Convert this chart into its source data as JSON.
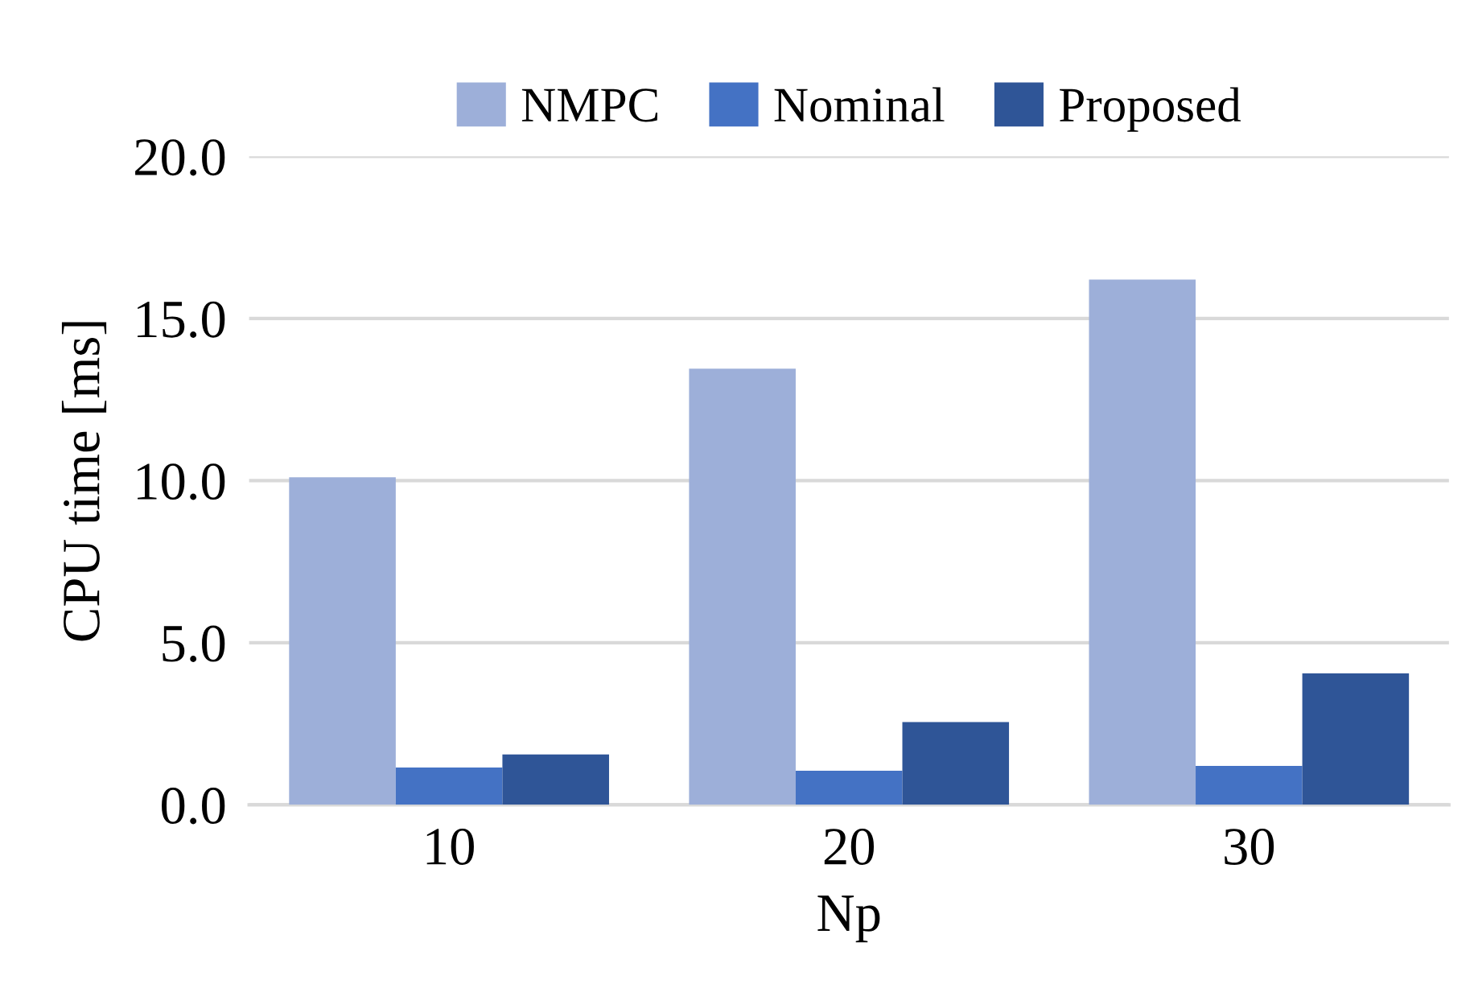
{
  "chart_data": {
    "type": "bar",
    "xlabel": "Np",
    "ylabel": "CPU time [ms]",
    "categories": [
      "10",
      "20",
      "30"
    ],
    "series": [
      {
        "name": "NMPC",
        "color": "#9dafd9",
        "values": [
          10.1,
          13.45,
          16.2
        ]
      },
      {
        "name": "Nominal",
        "color": "#4472c4",
        "values": [
          1.15,
          1.05,
          1.2
        ]
      },
      {
        "name": "Proposed",
        "color": "#2f5597",
        "values": [
          1.55,
          2.55,
          4.05
        ]
      }
    ],
    "ylim": [
      0,
      20
    ],
    "yticks": [
      {
        "value": 0,
        "label": "0.0"
      },
      {
        "value": 5,
        "label": "5.0"
      },
      {
        "value": 10,
        "label": "10.0"
      },
      {
        "value": 15,
        "label": "15.0"
      },
      {
        "value": 20,
        "label": "20.0"
      }
    ],
    "grid": "y",
    "legend": "top"
  }
}
